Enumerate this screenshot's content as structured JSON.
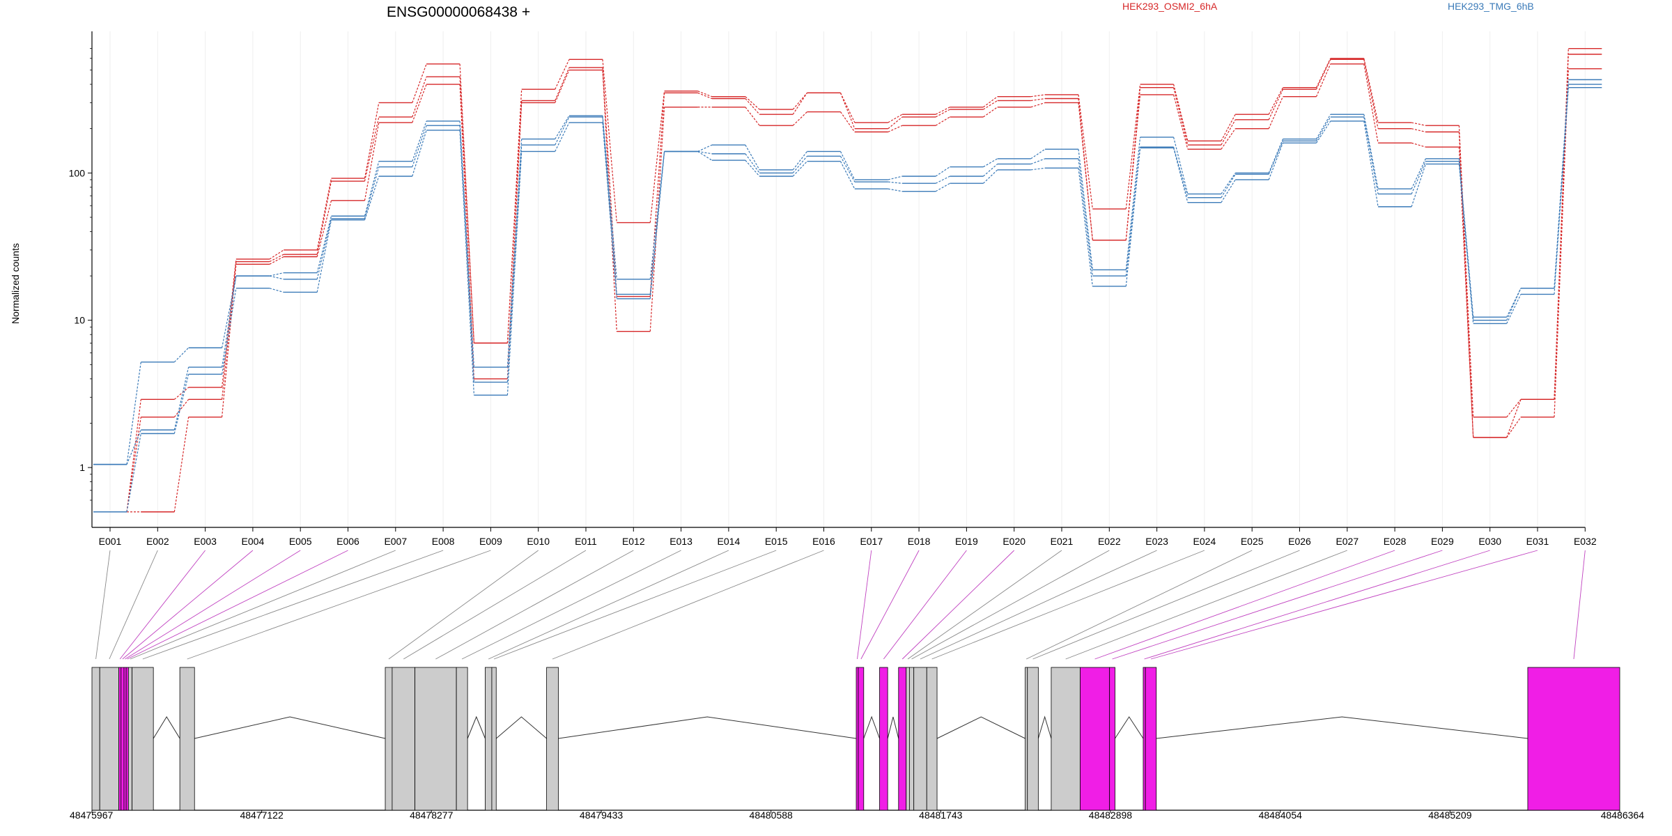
{
  "chart_data": {
    "type": "line",
    "title": "ENSG00000068438 +",
    "ylabel": "Normalized counts",
    "yscale": "log",
    "ylim": [
      0.5,
      800
    ],
    "yticks": [
      1,
      10,
      100
    ],
    "categories": [
      "E001",
      "E002",
      "E003",
      "E004",
      "E005",
      "E006",
      "E007",
      "E008",
      "E009",
      "E010",
      "E011",
      "E012",
      "E013",
      "E014",
      "E015",
      "E016",
      "E017",
      "E018",
      "E019",
      "E020",
      "E021",
      "E022",
      "E023",
      "E024",
      "E025",
      "E026",
      "E027",
      "E028",
      "E029",
      "E030",
      "E031",
      "E032"
    ],
    "legend": [
      {
        "name": "HEK293_OSMI2_6hA",
        "color": "#d62728"
      },
      {
        "name": "HEK293_TMG_6hB",
        "color": "#3a7ab8"
      }
    ],
    "series": [
      {
        "group": "HEK293_OSMI2_6hA",
        "color": "#d62728",
        "values": [
          0.5,
          2.9,
          3.5,
          26,
          30,
          92,
          300,
          550,
          7,
          370,
          590,
          46,
          360,
          330,
          270,
          350,
          220,
          250,
          280,
          330,
          340,
          57,
          400,
          165,
          250,
          380,
          600,
          220,
          210,
          2.2,
          2.9,
          700
        ]
      },
      {
        "group": "HEK293_OSMI2_6hA",
        "color": "#d62728",
        "values": [
          0.5,
          2.2,
          2.9,
          25,
          28,
          88,
          240,
          450,
          7,
          310,
          520,
          14.5,
          350,
          320,
          250,
          350,
          200,
          240,
          270,
          310,
          320,
          35,
          380,
          155,
          230,
          370,
          590,
          200,
          190,
          1.6,
          2.9,
          640
        ]
      },
      {
        "group": "HEK293_OSMI2_6hA",
        "color": "#d62728",
        "values": [
          0.5,
          0.5,
          2.2,
          24,
          27,
          65,
          220,
          400,
          4,
          300,
          500,
          8.4,
          280,
          280,
          210,
          260,
          190,
          210,
          240,
          280,
          300,
          35,
          340,
          145,
          200,
          330,
          550,
          160,
          150,
          1.6,
          2.2,
          510
        ]
      },
      {
        "group": "HEK293_TMG_6hB",
        "color": "#3a7ab8",
        "values": [
          1.05,
          5.2,
          6.5,
          20,
          21,
          51,
          120,
          225,
          4.8,
          170,
          245,
          19,
          140,
          155,
          105,
          140,
          90,
          95,
          110,
          125,
          145,
          22,
          175,
          72,
          100,
          170,
          250,
          78,
          125,
          10.5,
          16.5,
          430
        ]
      },
      {
        "group": "HEK293_TMG_6hB",
        "color": "#3a7ab8",
        "values": [
          1.05,
          1.8,
          4.8,
          20,
          19,
          49,
          110,
          210,
          3.8,
          155,
          240,
          15,
          140,
          135,
          100,
          130,
          87,
          85,
          95,
          115,
          125,
          20,
          150,
          68,
          98,
          165,
          240,
          72,
          120,
          10,
          16.5,
          400
        ]
      },
      {
        "group": "HEK293_TMG_6hB",
        "color": "#3a7ab8",
        "values": [
          0.5,
          1.7,
          4.3,
          16.5,
          15.5,
          48,
          95,
          195,
          3.1,
          140,
          220,
          14,
          140,
          122,
          95,
          120,
          78,
          75,
          85,
          105,
          108,
          17,
          148,
          63,
          90,
          160,
          225,
          59,
          115,
          9.5,
          15,
          380
        ]
      }
    ],
    "gene_model": {
      "coordinate_ticks": [
        "48475967",
        "48477122",
        "48478277",
        "48479433",
        "48480588",
        "48481743",
        "48482898",
        "48484054",
        "48485209",
        "48486364"
      ],
      "coord_start": 48475967,
      "coord_end": 48486364,
      "highlighted_exons": [
        "E003",
        "E004",
        "E005",
        "E006",
        "E017",
        "E018",
        "E019",
        "E020",
        "E028",
        "E029",
        "E030",
        "E031",
        "E032"
      ],
      "exons": [
        {
          "id": "E001",
          "start": 48475967,
          "end": 48476020
        },
        {
          "id": "E002",
          "start": 48476020,
          "end": 48476150
        },
        {
          "id": "E003",
          "start": 48476150,
          "end": 48476165
        },
        {
          "id": "E004",
          "start": 48476165,
          "end": 48476185
        },
        {
          "id": "E005",
          "start": 48476185,
          "end": 48476200
        },
        {
          "id": "E006",
          "start": 48476200,
          "end": 48476215
        },
        {
          "id": "E007",
          "start": 48476215,
          "end": 48476240
        },
        {
          "id": "E008",
          "start": 48476240,
          "end": 48476385
        },
        {
          "id": "E009",
          "start": 48476565,
          "end": 48476665
        },
        {
          "id": "E010",
          "start": 48477963,
          "end": 48478010
        },
        {
          "id": "E011",
          "start": 48478010,
          "end": 48478165
        },
        {
          "id": "E012",
          "start": 48478165,
          "end": 48478447
        },
        {
          "id": "E013",
          "start": 48478447,
          "end": 48478523
        },
        {
          "id": "E014",
          "start": 48478643,
          "end": 48478688
        },
        {
          "id": "E015",
          "start": 48478688,
          "end": 48478718
        },
        {
          "id": "E016",
          "start": 48479061,
          "end": 48479141
        },
        {
          "id": "E017",
          "start": 48481168,
          "end": 48481182
        },
        {
          "id": "E018",
          "start": 48481182,
          "end": 48481219
        },
        {
          "id": "E019",
          "start": 48481327,
          "end": 48481382
        },
        {
          "id": "E020",
          "start": 48481456,
          "end": 48481508
        },
        {
          "id": "E021",
          "start": 48481508,
          "end": 48481530
        },
        {
          "id": "E022",
          "start": 48481530,
          "end": 48481560
        },
        {
          "id": "E023",
          "start": 48481560,
          "end": 48481648
        },
        {
          "id": "E024",
          "start": 48481648,
          "end": 48481718
        },
        {
          "id": "E025",
          "start": 48482318,
          "end": 48482333
        },
        {
          "id": "E026",
          "start": 48482333,
          "end": 48482407
        },
        {
          "id": "E027",
          "start": 48482495,
          "end": 48482692
        },
        {
          "id": "E028",
          "start": 48482692,
          "end": 48482892
        },
        {
          "id": "E029",
          "start": 48482892,
          "end": 48482929
        },
        {
          "id": "E030",
          "start": 48483121,
          "end": 48483136
        },
        {
          "id": "E031",
          "start": 48483136,
          "end": 48483210
        },
        {
          "id": "E032",
          "start": 48485738,
          "end": 48486364
        }
      ],
      "exon_colors": {
        "normal": "#cccccc",
        "highlight": "#f01ee6"
      }
    }
  }
}
